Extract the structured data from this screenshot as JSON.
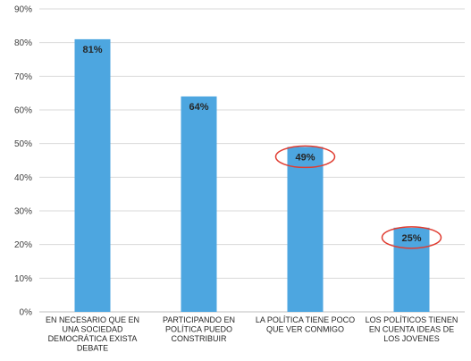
{
  "chart_data": {
    "type": "bar",
    "categories": [
      [
        "EN NECESARIO QUE EN",
        "UNA SOCIEDAD",
        "DEMOCRÁTICA EXISTA",
        "DEBATE"
      ],
      [
        "PARTICIPANDO EN",
        "POLÍTICA PUEDO",
        "CONSTRIBUIR"
      ],
      [
        "LA POLÍTICA TIENE POCO",
        "QUE VER CONMIGO"
      ],
      [
        "LOS POLÍTICOS TIENEN",
        "EN CUENTA IDEAS DE",
        "LOS JOVENES"
      ]
    ],
    "values": [
      81,
      64,
      49,
      25
    ],
    "data_labels": [
      "81%",
      "64%",
      "49%",
      "25%"
    ],
    "circled": [
      false,
      false,
      true,
      true
    ],
    "yticks": [
      "0%",
      "10%",
      "20%",
      "30%",
      "40%",
      "50%",
      "60%",
      "70%",
      "80%",
      "90%"
    ],
    "ylim": [
      0,
      90
    ],
    "grid": true,
    "bar_color": "#4da6e0",
    "circle_color": "#e03c31",
    "grid_color": "#d9d9d9"
  }
}
